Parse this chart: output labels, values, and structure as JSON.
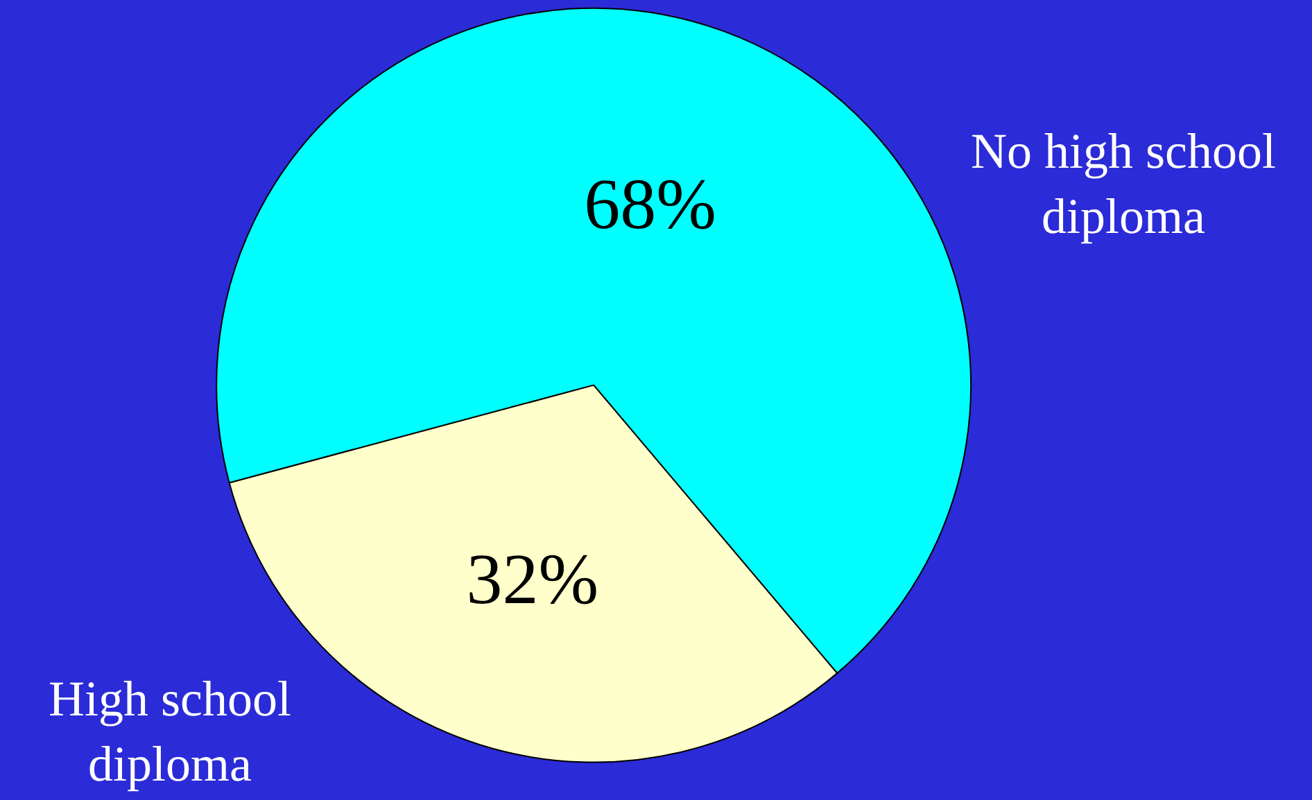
{
  "chart_data": {
    "type": "pie",
    "categories": [
      "No high school diploma",
      "High school diploma"
    ],
    "values": [
      68,
      32
    ],
    "colors": [
      "#00ffff",
      "#ffffcc"
    ],
    "value_labels": [
      "68%",
      "32%"
    ],
    "legend": false
  }
}
